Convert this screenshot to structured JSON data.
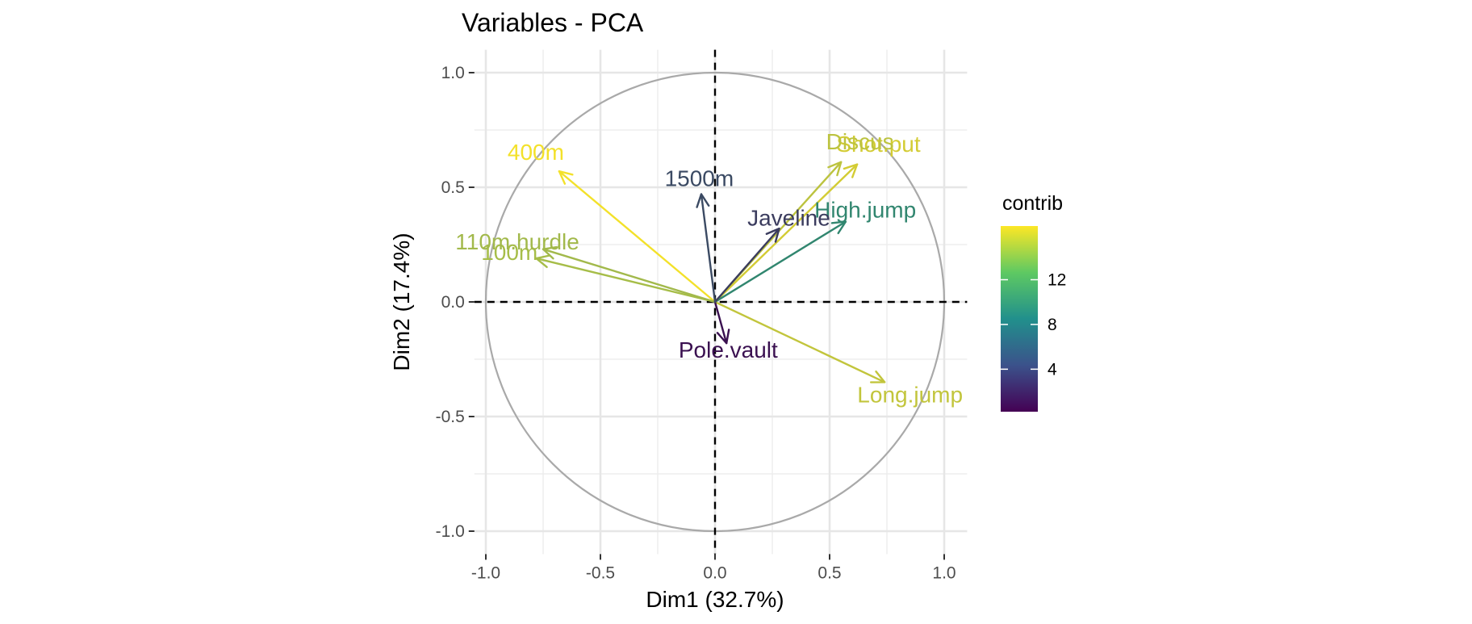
{
  "chart_data": {
    "type": "scatter",
    "subtype": "pca-variable-correlation-circle",
    "title": "Variables - PCA",
    "xlabel": "Dim1 (32.7%)",
    "ylabel": "Dim2 (17.4%)",
    "xlim": [
      -1.05,
      1.1
    ],
    "ylim": [
      -1.1,
      1.1
    ],
    "x_ticks": [
      -1.0,
      -0.5,
      0.0,
      0.5,
      1.0
    ],
    "x_tick_labels": [
      "-1.0",
      "-0.5",
      "0.0",
      "0.5",
      "1.0"
    ],
    "y_ticks": [
      -1.0,
      -0.5,
      0.0,
      0.5,
      1.0
    ],
    "y_tick_labels": [
      "-1.0",
      "-0.5",
      "0.0",
      "0.5",
      "1.0"
    ],
    "grid": true,
    "unit_circle": true,
    "reference_lines": [
      "x=0",
      "y=0"
    ],
    "variables": [
      {
        "name": "100m",
        "x": -0.78,
        "y": 0.19,
        "contrib": 13.0,
        "color": "#a6bd48"
      },
      {
        "name": "Long.jump",
        "x": 0.74,
        "y": -0.35,
        "contrib": 14.5,
        "color": "#c2c53c"
      },
      {
        "name": "Shot.put",
        "x": 0.62,
        "y": 0.6,
        "contrib": 15.5,
        "color": "#d3cc34"
      },
      {
        "name": "High.jump",
        "x": 0.57,
        "y": 0.35,
        "contrib": 9.0,
        "color": "#31866f"
      },
      {
        "name": "400m",
        "x": -0.68,
        "y": 0.57,
        "contrib": 16.5,
        "color": "#f3e12a"
      },
      {
        "name": "110m.hurdle",
        "x": -0.75,
        "y": 0.23,
        "contrib": 13.0,
        "color": "#a2b94b"
      },
      {
        "name": "Discus",
        "x": 0.55,
        "y": 0.61,
        "contrib": 14.0,
        "color": "#bcc33f"
      },
      {
        "name": "Pole.vault",
        "x": 0.05,
        "y": -0.18,
        "contrib": 0.5,
        "color": "#3a1050"
      },
      {
        "name": "Javeline",
        "x": 0.28,
        "y": 0.32,
        "contrib": 3.0,
        "color": "#3b3c5e"
      },
      {
        "name": "1500m",
        "x": -0.06,
        "y": 0.47,
        "contrib": 4.0,
        "color": "#3b4a63"
      }
    ],
    "legend": {
      "title": "contrib",
      "position": "right",
      "ticks": [
        4,
        8,
        12
      ],
      "tick_labels": [
        "4",
        "8",
        "12"
      ],
      "range": [
        0.2,
        16.8
      ],
      "gradient_colors": [
        "#440154",
        "#3b528b",
        "#21908c",
        "#5ec962",
        "#fde725"
      ]
    }
  }
}
